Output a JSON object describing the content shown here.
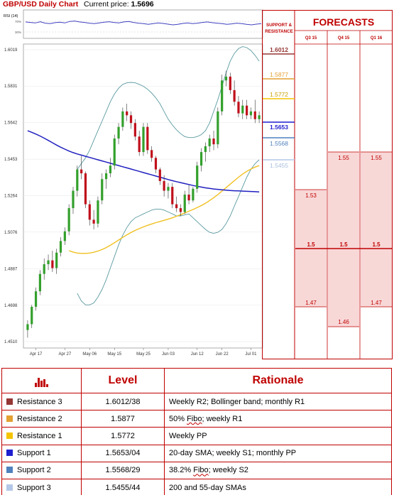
{
  "header": {
    "chart_title": "GBP/USD Daily Chart",
    "price_label": "Current price:",
    "price_value": "1.5696"
  },
  "colors": {
    "accent_red": "#c00000",
    "resistance_3": "#953735",
    "resistance_2": "#e3a033",
    "resistance_1": "#f5c400",
    "support_1": "#1f1fd0",
    "support_2": "#4f81bd",
    "support_3": "#b4c7e7",
    "candle_up": "#33a02c",
    "candle_down": "#c0101b",
    "sma_20": "#2020c0",
    "sma_55": "#f0c020",
    "bollinger": "#5a9aa0"
  },
  "chart_data": [
    {
      "type": "candlestick",
      "title": "GBP/USD Daily Chart",
      "yticks": [
        "1.6019",
        "1.5831",
        "1.5642",
        "1.5453",
        "1.5264",
        "1.5076",
        "1.4887",
        "1.4698",
        "1.4510"
      ],
      "ylim": [
        1.451,
        1.6019
      ],
      "xticks": [
        "Apr 17",
        "Apr 27",
        "May 06",
        "May 15",
        "May 25",
        "Jun 03",
        "Jun 12",
        "Jun 22",
        "Jul 01"
      ],
      "candles": [
        {
          "o": 1.457,
          "h": 1.462,
          "l": 1.453,
          "c": 1.46
        },
        {
          "o": 1.46,
          "h": 1.47,
          "l": 1.458,
          "c": 1.469
        },
        {
          "o": 1.469,
          "h": 1.479,
          "l": 1.467,
          "c": 1.477
        },
        {
          "o": 1.477,
          "h": 1.488,
          "l": 1.475,
          "c": 1.486
        },
        {
          "o": 1.486,
          "h": 1.494,
          "l": 1.483,
          "c": 1.491
        },
        {
          "o": 1.491,
          "h": 1.496,
          "l": 1.488,
          "c": 1.493
        },
        {
          "o": 1.493,
          "h": 1.498,
          "l": 1.487,
          "c": 1.489
        },
        {
          "o": 1.489,
          "h": 1.499,
          "l": 1.486,
          "c": 1.497
        },
        {
          "o": 1.497,
          "h": 1.505,
          "l": 1.495,
          "c": 1.503
        },
        {
          "o": 1.503,
          "h": 1.51,
          "l": 1.501,
          "c": 1.508
        },
        {
          "o": 1.508,
          "h": 1.522,
          "l": 1.506,
          "c": 1.52
        },
        {
          "o": 1.52,
          "h": 1.531,
          "l": 1.517,
          "c": 1.529
        },
        {
          "o": 1.529,
          "h": 1.542,
          "l": 1.526,
          "c": 1.54
        },
        {
          "o": 1.54,
          "h": 1.547,
          "l": 1.535,
          "c": 1.538
        },
        {
          "o": 1.538,
          "h": 1.539,
          "l": 1.52,
          "c": 1.522
        },
        {
          "o": 1.522,
          "h": 1.524,
          "l": 1.511,
          "c": 1.514
        },
        {
          "o": 1.514,
          "h": 1.519,
          "l": 1.509,
          "c": 1.512
        },
        {
          "o": 1.512,
          "h": 1.526,
          "l": 1.51,
          "c": 1.524
        },
        {
          "o": 1.524,
          "h": 1.538,
          "l": 1.522,
          "c": 1.535
        },
        {
          "o": 1.535,
          "h": 1.54,
          "l": 1.53,
          "c": 1.538
        },
        {
          "o": 1.538,
          "h": 1.546,
          "l": 1.536,
          "c": 1.542
        },
        {
          "o": 1.542,
          "h": 1.558,
          "l": 1.54,
          "c": 1.556
        },
        {
          "o": 1.556,
          "h": 1.564,
          "l": 1.553,
          "c": 1.562
        },
        {
          "o": 1.562,
          "h": 1.572,
          "l": 1.56,
          "c": 1.57
        },
        {
          "o": 1.57,
          "h": 1.574,
          "l": 1.565,
          "c": 1.568
        },
        {
          "o": 1.568,
          "h": 1.57,
          "l": 1.561,
          "c": 1.564
        },
        {
          "o": 1.564,
          "h": 1.566,
          "l": 1.555,
          "c": 1.557
        },
        {
          "o": 1.557,
          "h": 1.56,
          "l": 1.547,
          "c": 1.549
        },
        {
          "o": 1.549,
          "h": 1.564,
          "l": 1.547,
          "c": 1.562
        },
        {
          "o": 1.562,
          "h": 1.564,
          "l": 1.548,
          "c": 1.55
        },
        {
          "o": 1.55,
          "h": 1.552,
          "l": 1.544,
          "c": 1.546
        },
        {
          "o": 1.546,
          "h": 1.547,
          "l": 1.538,
          "c": 1.54
        },
        {
          "o": 1.54,
          "h": 1.541,
          "l": 1.532,
          "c": 1.534
        },
        {
          "o": 1.534,
          "h": 1.537,
          "l": 1.526,
          "c": 1.529
        },
        {
          "o": 1.529,
          "h": 1.533,
          "l": 1.525,
          "c": 1.531
        },
        {
          "o": 1.531,
          "h": 1.533,
          "l": 1.52,
          "c": 1.522
        },
        {
          "o": 1.522,
          "h": 1.526,
          "l": 1.518,
          "c": 1.52
        },
        {
          "o": 1.52,
          "h": 1.522,
          "l": 1.516,
          "c": 1.518
        },
        {
          "o": 1.518,
          "h": 1.529,
          "l": 1.517,
          "c": 1.527
        },
        {
          "o": 1.527,
          "h": 1.532,
          "l": 1.522,
          "c": 1.524
        },
        {
          "o": 1.524,
          "h": 1.531,
          "l": 1.523,
          "c": 1.53
        },
        {
          "o": 1.53,
          "h": 1.544,
          "l": 1.528,
          "c": 1.542
        },
        {
          "o": 1.542,
          "h": 1.551,
          "l": 1.539,
          "c": 1.549
        },
        {
          "o": 1.549,
          "h": 1.554,
          "l": 1.544,
          "c": 1.552
        },
        {
          "o": 1.552,
          "h": 1.558,
          "l": 1.549,
          "c": 1.556
        },
        {
          "o": 1.556,
          "h": 1.56,
          "l": 1.55,
          "c": 1.553
        },
        {
          "o": 1.553,
          "h": 1.572,
          "l": 1.551,
          "c": 1.57
        },
        {
          "o": 1.57,
          "h": 1.589,
          "l": 1.568,
          "c": 1.586
        },
        {
          "o": 1.586,
          "h": 1.591,
          "l": 1.583,
          "c": 1.588
        },
        {
          "o": 1.588,
          "h": 1.59,
          "l": 1.579,
          "c": 1.581
        },
        {
          "o": 1.581,
          "h": 1.586,
          "l": 1.573,
          "c": 1.575
        },
        {
          "o": 1.575,
          "h": 1.578,
          "l": 1.567,
          "c": 1.569
        },
        {
          "o": 1.569,
          "h": 1.576,
          "l": 1.566,
          "c": 1.573
        },
        {
          "o": 1.573,
          "h": 1.576,
          "l": 1.566,
          "c": 1.568
        },
        {
          "o": 1.568,
          "h": 1.572,
          "l": 1.566,
          "c": 1.57
        },
        {
          "o": 1.57,
          "h": 1.576,
          "l": 1.564,
          "c": 1.566
        },
        {
          "o": 1.566,
          "h": 1.57,
          "l": 1.564,
          "c": 1.568
        }
      ],
      "sma_blue": [
        1.56,
        1.5592,
        1.5583,
        1.5573,
        1.5562,
        1.555,
        1.5538,
        1.5526,
        1.5515,
        1.5505,
        1.5495,
        1.5487,
        1.548,
        1.5474,
        1.5468,
        1.5462,
        1.5456,
        1.545,
        1.5444,
        1.5438,
        1.5432,
        1.5426,
        1.542,
        1.5414,
        1.5408,
        1.5402,
        1.5396,
        1.539,
        1.5384,
        1.5378,
        1.5372,
        1.5366,
        1.536,
        1.5354,
        1.5348,
        1.5342,
        1.5337,
        1.5332,
        1.5327,
        1.5322,
        1.5317,
        1.5313,
        1.5309,
        1.5305,
        1.5302,
        1.5299,
        1.5297,
        1.5295,
        1.5293,
        1.5291,
        1.529,
        1.5289,
        1.5288,
        1.5287,
        1.5286,
        1.5285,
        1.5284
      ],
      "sma_yellow_start_index": 10,
      "sma_yellow": [
        1.498,
        1.4973,
        1.4968,
        1.4966,
        1.4966,
        1.4968,
        1.4972,
        1.4978,
        1.4986,
        1.4996,
        1.5008,
        1.5021,
        1.5035,
        1.5049,
        1.5062,
        1.5074,
        1.5085,
        1.5094,
        1.5103,
        1.5111,
        1.5118,
        1.5125,
        1.5131,
        1.5137,
        1.5143,
        1.515,
        1.5158,
        1.5166,
        1.5175,
        1.5184,
        1.5193,
        1.5203,
        1.5213,
        1.5225,
        1.5239,
        1.5254,
        1.527,
        1.5288,
        1.5306,
        1.5324,
        1.5342,
        1.536,
        1.5376,
        1.539,
        1.5402,
        1.5412,
        1.542
      ],
      "bollinger_upper": [
        null,
        null,
        null,
        null,
        null,
        null,
        null,
        null,
        null,
        null,
        null,
        null,
        1.54,
        1.543,
        1.546,
        1.55,
        1.555,
        1.56,
        1.565,
        1.57,
        1.575,
        1.579,
        1.582,
        1.584,
        1.5848,
        1.585,
        1.5848,
        1.584,
        1.583,
        1.5815,
        1.5795,
        1.577,
        1.574,
        1.57,
        1.566,
        1.563,
        1.5605,
        1.5585,
        1.557,
        1.5565,
        1.5565,
        1.557,
        1.558,
        1.56,
        1.564,
        1.57,
        1.576,
        1.583,
        1.59,
        1.596,
        1.6,
        1.6025,
        1.6035,
        1.603,
        1.6015,
        1.599,
        1.596
      ],
      "bollinger_lower": [
        null,
        null,
        null,
        null,
        null,
        null,
        null,
        null,
        null,
        null,
        null,
        null,
        1.476,
        1.472,
        1.47,
        1.47,
        1.471,
        1.474,
        1.478,
        1.483,
        1.489,
        1.495,
        1.501,
        1.506,
        1.51,
        1.513,
        1.515,
        1.516,
        1.517,
        1.518,
        1.519,
        1.5195,
        1.5195,
        1.519,
        1.518,
        1.517,
        1.516,
        1.516,
        1.5165,
        1.517,
        1.515,
        1.513,
        1.511,
        1.509,
        1.5075,
        1.507,
        1.5075,
        1.509,
        1.512,
        1.516,
        1.521,
        1.526,
        1.531,
        1.536,
        1.54,
        1.543,
        1.545
      ]
    },
    {
      "type": "line",
      "title": "RSI (14)",
      "yticks": [
        "70%",
        "30%"
      ],
      "ylim": [
        0,
        100
      ],
      "values": [
        62,
        60,
        58,
        63,
        57,
        55,
        59,
        61,
        58,
        64,
        66,
        62,
        60,
        57,
        55,
        58,
        61,
        63,
        60,
        58,
        62,
        64,
        60,
        57,
        55,
        52,
        55,
        58,
        56,
        53,
        50,
        52,
        56,
        58,
        55,
        57,
        60,
        62,
        59,
        57,
        55,
        52,
        54,
        57,
        55,
        52,
        50,
        53,
        55
      ]
    }
  ],
  "levels_axis": {
    "r3": "1.6012",
    "r2": "1.5877",
    "r1": "1.5772",
    "s1": "1.5653",
    "s2": "1.5568",
    "s3": "1.5455"
  },
  "forecasts": {
    "title": "FORECASTS",
    "sr_label_line1": "SUPPORT &",
    "sr_label_line2": "RESISTANCE",
    "columns": [
      {
        "label": "Q3 15",
        "high": "1.53",
        "mid": "1.5",
        "low": "1.47"
      },
      {
        "label": "Q4 15",
        "high": "1.55",
        "mid": "1.5",
        "low": "1.46"
      },
      {
        "label": "Q1 16",
        "high": "1.55",
        "mid": "1.5",
        "low": "1.47"
      }
    ]
  },
  "table": {
    "col_level": "Level",
    "col_rationale": "Rationale",
    "rows": [
      {
        "label": "Resistance 3",
        "level": "1.6012/38",
        "rationale": "Weekly R2; Bollinger band; monthly R1"
      },
      {
        "label": "Resistance 2",
        "level": "1.5877",
        "rationale_pre": "50% ",
        "rationale_fibo": "Fibo",
        "rationale_post": "; weekly R1"
      },
      {
        "label": "Resistance 1",
        "level": "1.5772",
        "rationale": "Weekly PP"
      },
      {
        "label": "Support 1",
        "level": "1.5653/04",
        "rationale": "20-day SMA; weekly S1; monthly PP"
      },
      {
        "label": "Support 2",
        "level": "1.5568/29",
        "rationale_pre": "38.2% ",
        "rationale_fibo": "Fibo",
        "rationale_post": "; weekly S2"
      },
      {
        "label": "Support 3",
        "level": "1.5455/44",
        "rationale": "200 and 55-day SMAs"
      }
    ]
  }
}
